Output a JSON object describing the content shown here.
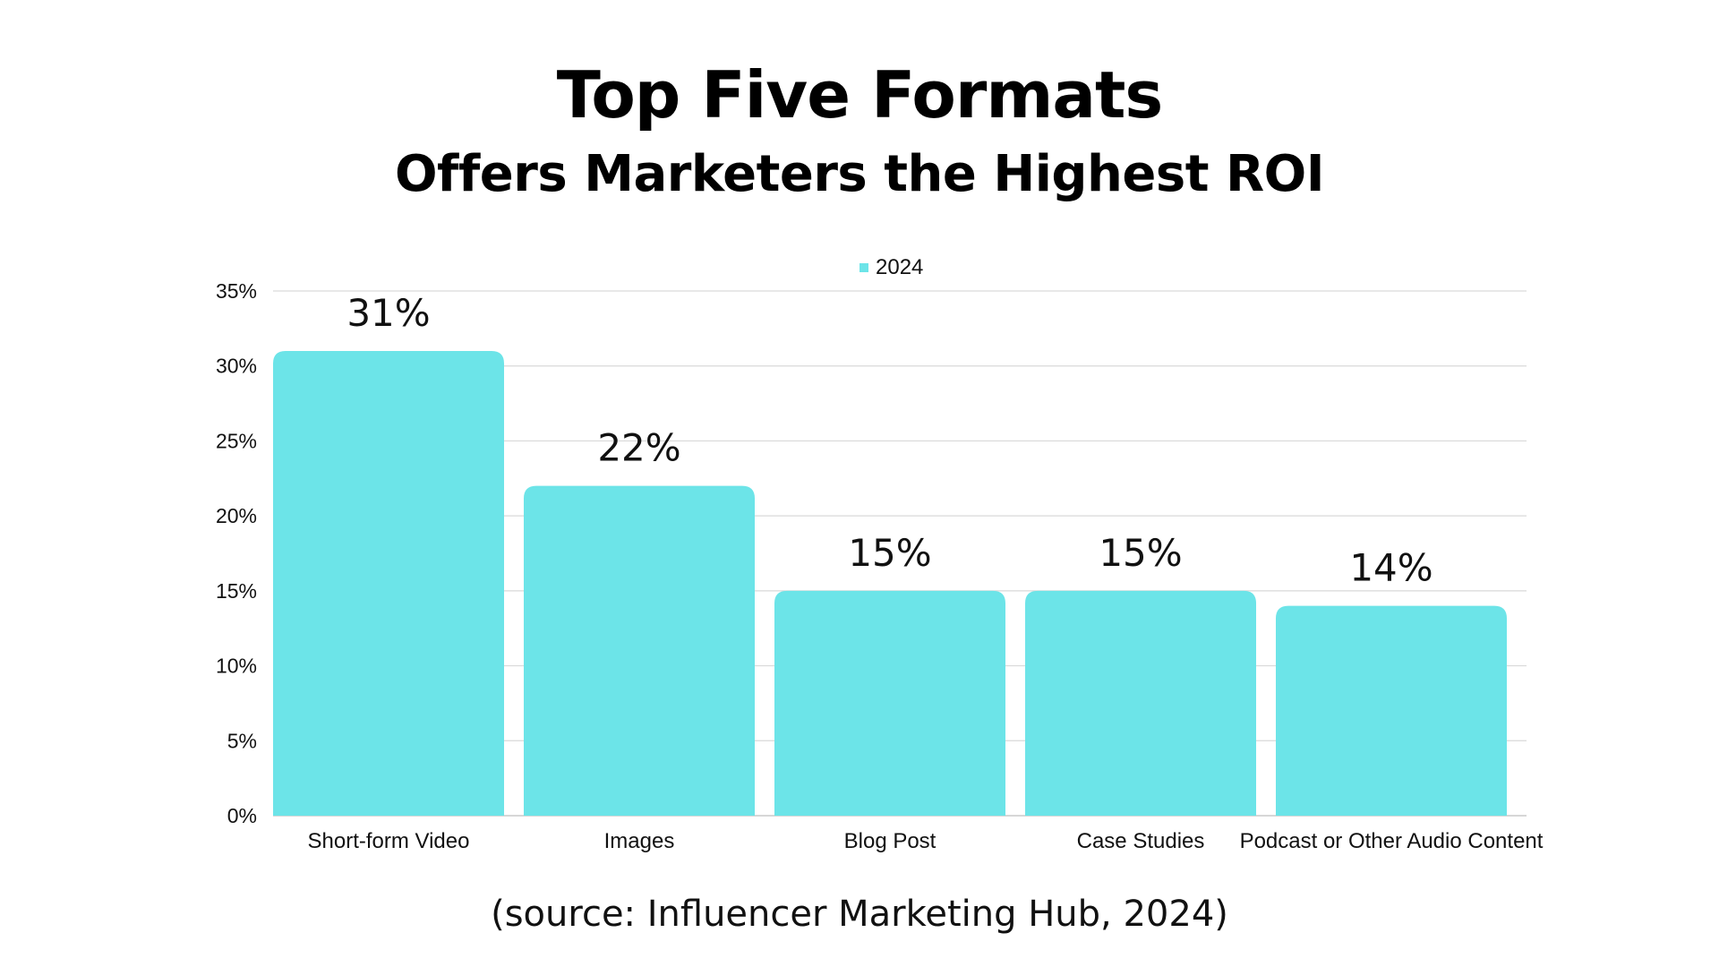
{
  "title": "Top Five Formats",
  "subtitle": "Offers Marketers the Highest ROI",
  "source": "(source: Influencer Marketing Hub, 2024)",
  "colors": {
    "bar": "#6ce4e8",
    "grid": "#d9d9d9",
    "axis": "#bfbfbf",
    "text": "#111111"
  },
  "chart_data": {
    "type": "bar",
    "title": "Top Five Formats",
    "subtitle": "Offers Marketers the Highest ROI",
    "xlabel": "",
    "ylabel": "",
    "categories": [
      "Short-form Video",
      "Images",
      "Blog Post",
      "Case Studies",
      "Podcast or Other Audio Content"
    ],
    "series": [
      {
        "name": "2024",
        "values": [
          31,
          22,
          15,
          15,
          14
        ]
      }
    ],
    "data_labels": [
      "31%",
      "22%",
      "15%",
      "15%",
      "14%"
    ],
    "ylim": [
      0,
      35
    ],
    "yticks": [
      0,
      5,
      10,
      15,
      20,
      25,
      30,
      35
    ],
    "ytick_labels": [
      "0%",
      "5%",
      "10%",
      "15%",
      "20%",
      "25%",
      "30%",
      "35%"
    ],
    "grid": true,
    "legend": "top-center"
  }
}
